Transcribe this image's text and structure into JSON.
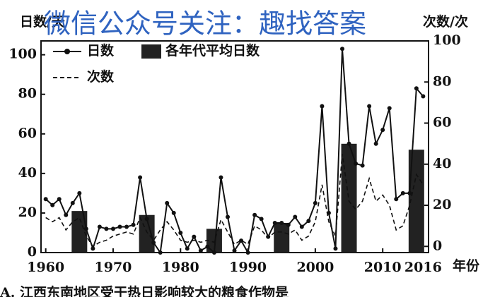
{
  "chart_data": {
    "type": "line",
    "ylabel": "日数/天",
    "y2label": "次数/次",
    "xlabel": "年份",
    "watermark": "微信公众号关注：趣找答案",
    "caption": "A. 江西东南地区受干热日影响较大的粮食作物是",
    "xlim": [
      1959.3,
      2016.8
    ],
    "xticks": [
      1960,
      1970,
      1980,
      1990,
      2000,
      2010,
      2016
    ],
    "ylim": [
      0,
      107
    ],
    "yticks": [
      0,
      20,
      40,
      60,
      80,
      100
    ],
    "y2lim": [
      -3,
      100
    ],
    "y2ticks": [
      0,
      20,
      40,
      60,
      80,
      100
    ],
    "legend": "upper left",
    "x": [
      1960,
      1961,
      1962,
      1963,
      1964,
      1965,
      1966,
      1967,
      1968,
      1969,
      1970,
      1971,
      1972,
      1973,
      1974,
      1975,
      1976,
      1977,
      1978,
      1979,
      1980,
      1981,
      1982,
      1983,
      1984,
      1985,
      1986,
      1987,
      1988,
      1989,
      1990,
      1991,
      1992,
      1993,
      1994,
      1995,
      1996,
      1997,
      1998,
      1999,
      2000,
      2001,
      2002,
      2003,
      2004,
      2005,
      2006,
      2007,
      2008,
      2009,
      2010,
      2011,
      2012,
      2013,
      2014,
      2015,
      2016
    ],
    "series": [
      {
        "name": "日数",
        "type": "line",
        "color": "#111",
        "values": [
          27,
          24,
          27,
          19,
          25,
          30,
          12,
          2,
          13,
          12,
          12,
          13,
          13,
          14,
          38,
          17,
          5,
          0,
          25,
          20,
          10,
          2,
          8,
          1,
          3,
          0,
          38,
          18,
          1,
          6,
          0,
          19,
          17,
          8,
          15,
          15,
          14,
          18,
          13,
          16,
          25,
          74,
          20,
          2,
          103,
          55,
          45,
          44,
          74,
          55,
          62,
          73,
          27,
          30,
          30,
          83,
          79
        ]
      },
      {
        "name": "各年代平均日数",
        "type": "bar",
        "color": "#222",
        "x": [
          1965,
          1975,
          1985,
          1995,
          2005,
          2015
        ],
        "values": [
          21,
          19,
          12,
          15,
          55,
          52
        ]
      },
      {
        "name": "次数",
        "type": "line",
        "dash": true,
        "axis": "y2",
        "color": "#111",
        "values": [
          14,
          12,
          14,
          8,
          12,
          14,
          5,
          0,
          2,
          3,
          5,
          6,
          7,
          6,
          14,
          7,
          3,
          8,
          12,
          8,
          3,
          2,
          3,
          2,
          3,
          2,
          13,
          7,
          1,
          3,
          1,
          10,
          8,
          4,
          7,
          7,
          6,
          8,
          3,
          5,
          12,
          30,
          12,
          5,
          45,
          22,
          18,
          22,
          33,
          22,
          25,
          20,
          8,
          10,
          20,
          35,
          30
        ]
      }
    ]
  }
}
